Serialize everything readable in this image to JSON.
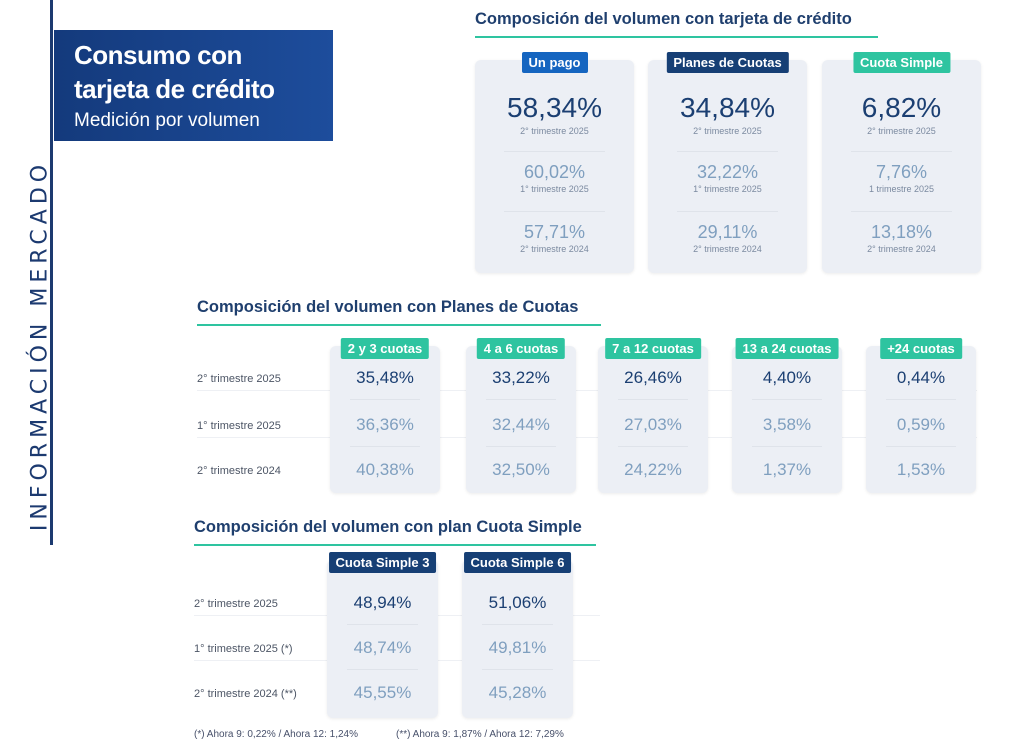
{
  "side_label": "INFORMACIÓN MERCADO",
  "title": {
    "line1": "Consumo con",
    "line2": "tarjeta de crédito",
    "subtitle": "Medición por volumen"
  },
  "colors": {
    "navy": "#1b3f72",
    "green": "#2ec4a0",
    "blue": "#1565c0",
    "dark_tag": "#163f75"
  },
  "section1": {
    "title": "Composición del volumen con tarjeta de crédito",
    "cards": [
      {
        "label": "Un pago",
        "color": "#1565c0",
        "rows": [
          {
            "value": "58,34%",
            "period": "2° trimestre 2025"
          },
          {
            "value": "60,02%",
            "period": "1° trimestre 2025"
          },
          {
            "value": "57,71%",
            "period": "2° trimestre 2024"
          }
        ]
      },
      {
        "label": "Planes de Cuotas",
        "color": "#163f75",
        "rows": [
          {
            "value": "34,84%",
            "period": "2° trimestre 2025"
          },
          {
            "value": "32,22%",
            "period": "1° trimestre 2025"
          },
          {
            "value": "29,11%",
            "period": "2° trimestre 2024"
          }
        ]
      },
      {
        "label": "Cuota Simple",
        "color": "#2ec4a0",
        "rows": [
          {
            "value": "6,82%",
            "period": "2° trimestre 2025"
          },
          {
            "value": "7,76%",
            "period": "1 trimestre 2025"
          },
          {
            "value": "13,18%",
            "period": "2° trimestre 2024"
          }
        ]
      }
    ]
  },
  "section2": {
    "title": "Composición del volumen con Planes de Cuotas",
    "row_labels": [
      "2° trimestre 2025",
      "1° trimestre 2025",
      "2° trimestre 2024"
    ],
    "columns": [
      {
        "label": "2 y 3 cuotas",
        "values": [
          "35,48%",
          "36,36%",
          "40,38%"
        ]
      },
      {
        "label": "4 a 6 cuotas",
        "values": [
          "33,22%",
          "32,44%",
          "32,50%"
        ]
      },
      {
        "label": "7 a 12 cuotas",
        "values": [
          "26,46%",
          "27,03%",
          "24,22%"
        ]
      },
      {
        "label": "13 a 24 cuotas",
        "values": [
          "4,40%",
          "3,58%",
          "1,37%"
        ]
      },
      {
        "label": "+24 cuotas",
        "values": [
          "0,44%",
          "0,59%",
          "1,53%"
        ]
      }
    ]
  },
  "section3": {
    "title": "Composición del volumen con plan Cuota Simple",
    "row_labels": [
      "2° trimestre 2025",
      "1° trimestre 2025 (*)",
      "2° trimestre 2024 (**)"
    ],
    "columns": [
      {
        "label": "Cuota Simple 3",
        "values": [
          "48,94%",
          "48,74%",
          "45,55%"
        ]
      },
      {
        "label": "Cuota Simple 6",
        "values": [
          "51,06%",
          "49,81%",
          "45,28%"
        ]
      }
    ],
    "footnotes": [
      "(*) Ahora 9: 0,22% / Ahora 12: 1,24%",
      "(**) Ahora 9: 1,87% / Ahora 12: 7,29%"
    ]
  }
}
